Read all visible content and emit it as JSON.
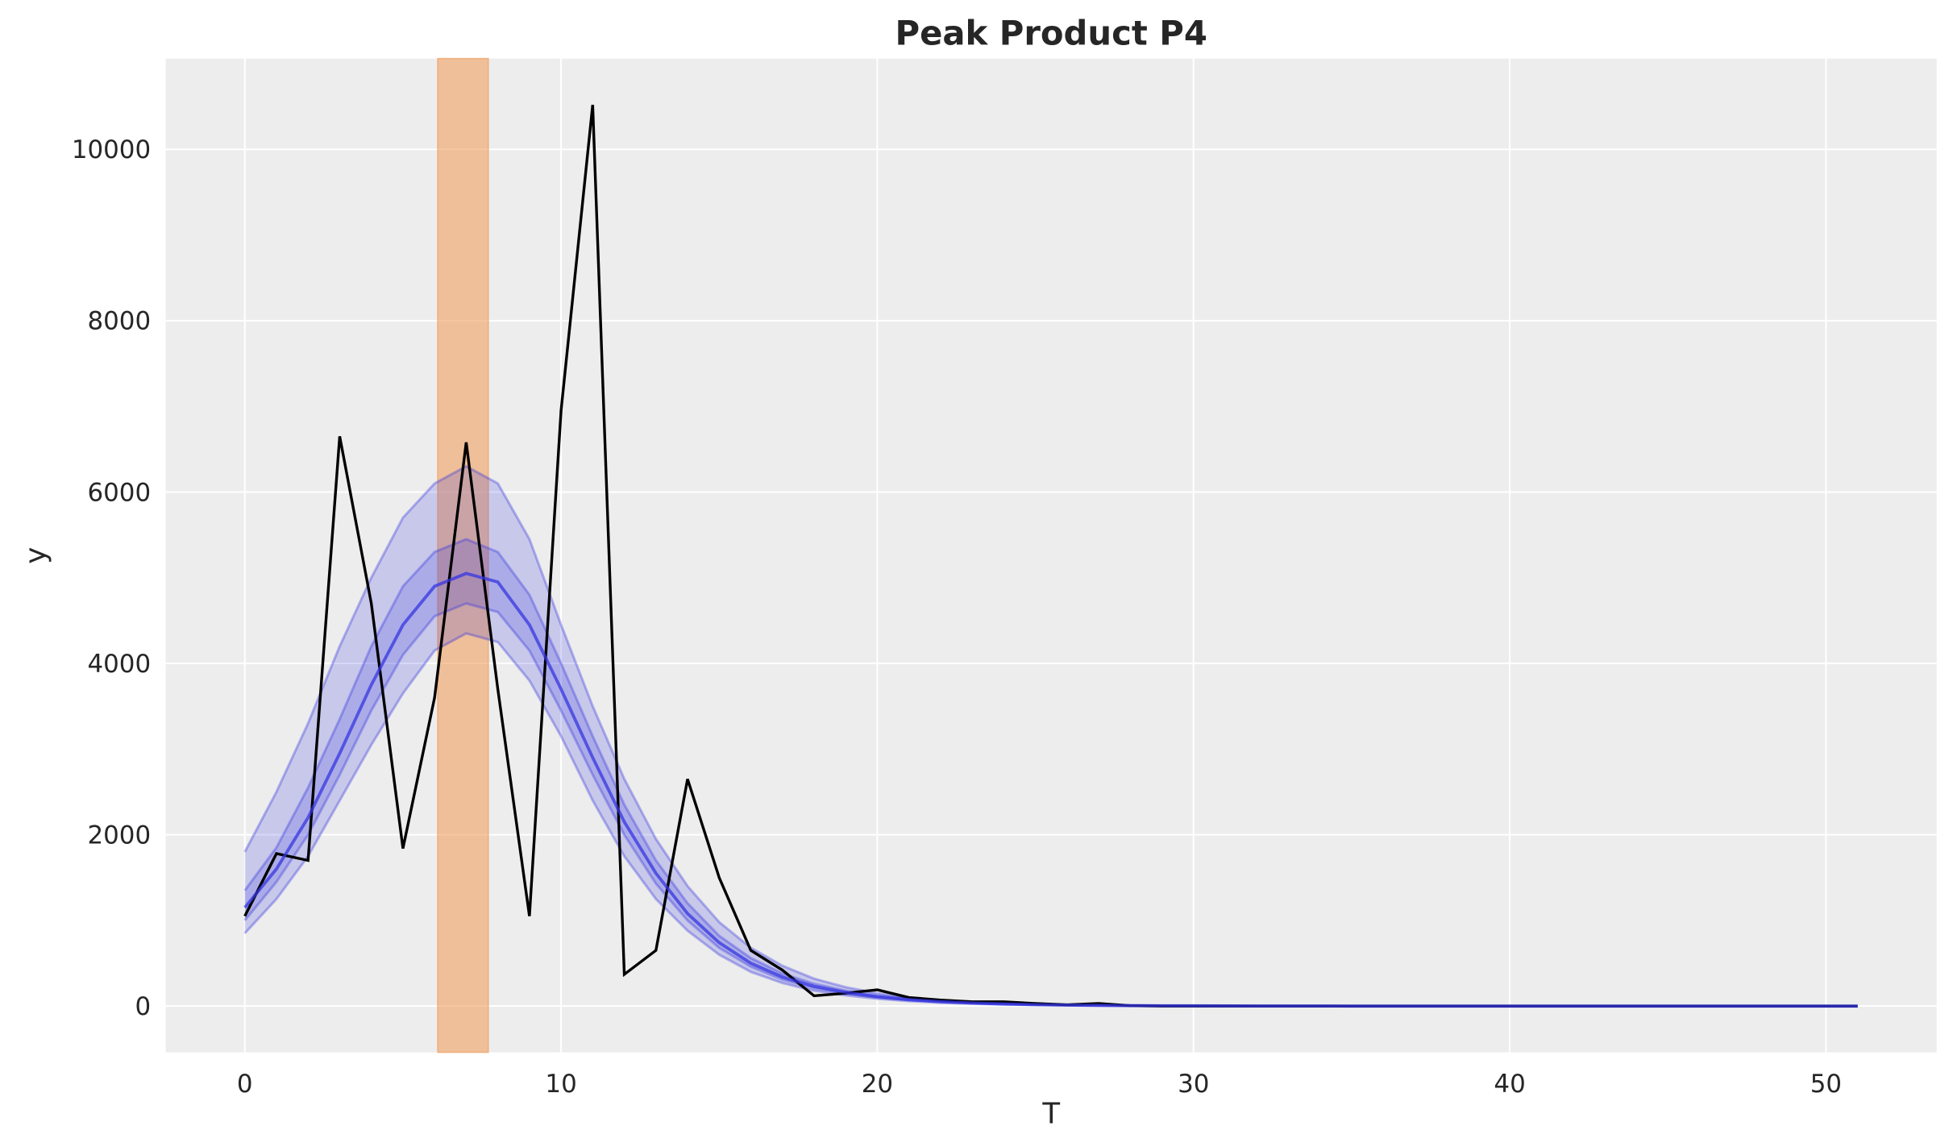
{
  "chart_data": {
    "type": "line",
    "title": "Peak Product P4",
    "xlabel": "T",
    "ylabel": "y",
    "xlim": [
      -2.5,
      53.5
    ],
    "ylim": [
      -540,
      11060
    ],
    "xticks": [
      0,
      10,
      20,
      30,
      40,
      50
    ],
    "yticks": [
      0,
      2000,
      4000,
      6000,
      8000,
      10000
    ],
    "grid": true,
    "background": "#ededed",
    "highlight_span": {
      "x_start": 6.1,
      "x_end": 7.7,
      "color": "#f0a060"
    },
    "observed": {
      "color": "#000000",
      "values": [
        1050,
        1780,
        1700,
        6650,
        4700,
        1840,
        3600,
        6580,
        3700,
        1050,
        6950,
        10520,
        370,
        650,
        2650,
        1500,
        650,
        420,
        120,
        150,
        190,
        100,
        70,
        50,
        50,
        30,
        15,
        30,
        5,
        0,
        0,
        0,
        0,
        0,
        0,
        0,
        0,
        0,
        0,
        0,
        0,
        0,
        0,
        0,
        0,
        0,
        0,
        0,
        0,
        0,
        0,
        0
      ]
    },
    "posterior_color": "#3535e0",
    "posterior_bands": [
      {
        "lower": [
          850,
          1250,
          1750,
          2400,
          3050,
          3650,
          4150,
          4350,
          4250,
          3800,
          3150,
          2400,
          1750,
          1250,
          880,
          600,
          400,
          270,
          180,
          125,
          85,
          58,
          40,
          28,
          19,
          13,
          9,
          6,
          4,
          3,
          2,
          1,
          1,
          0,
          0,
          0,
          0,
          0,
          0,
          0,
          0,
          0,
          0,
          0,
          0,
          0,
          0,
          0,
          0,
          0,
          0,
          0
        ],
        "upper": [
          1800,
          2500,
          3300,
          4200,
          5000,
          5700,
          6100,
          6300,
          6100,
          5450,
          4450,
          3500,
          2650,
          1950,
          1400,
          980,
          680,
          470,
          320,
          220,
          150,
          100,
          70,
          48,
          33,
          22,
          15,
          10,
          7,
          5,
          4,
          3,
          2,
          1,
          1,
          0,
          0,
          0,
          0,
          0,
          0,
          0,
          0,
          0,
          0,
          0,
          0,
          0,
          0,
          0,
          0,
          0
        ]
      },
      {
        "lower": [
          1000,
          1450,
          2000,
          2700,
          3450,
          4100,
          4550,
          4700,
          4600,
          4150,
          3450,
          2700,
          2000,
          1430,
          1000,
          680,
          460,
          310,
          210,
          145,
          100,
          68,
          47,
          33,
          23,
          15,
          11,
          7,
          5,
          3,
          2,
          2,
          1,
          1,
          0,
          0,
          0,
          0,
          0,
          0,
          0,
          0,
          0,
          0,
          0,
          0,
          0,
          0,
          0,
          0,
          0,
          0
        ],
        "upper": [
          1350,
          1850,
          2550,
          3350,
          4200,
          4900,
          5300,
          5450,
          5300,
          4800,
          4000,
          3150,
          2350,
          1700,
          1200,
          820,
          560,
          380,
          260,
          180,
          125,
          85,
          58,
          40,
          28,
          19,
          13,
          9,
          6,
          4,
          3,
          2,
          1,
          1,
          1,
          0,
          0,
          0,
          0,
          0,
          0,
          0,
          0,
          0,
          0,
          0,
          0,
          0,
          0,
          0,
          0,
          0
        ]
      }
    ],
    "posterior_mean": [
      1150,
      1600,
      2200,
      2950,
      3750,
      4450,
      4900,
      5050,
      4950,
      4450,
      3700,
      2900,
      2150,
      1550,
      1080,
      740,
      500,
      340,
      230,
      160,
      110,
      75,
      52,
      36,
      25,
      17,
      12,
      8,
      6,
      4,
      3,
      2,
      1,
      1,
      1,
      0,
      0,
      0,
      0,
      0,
      0,
      0,
      0,
      0,
      0,
      0,
      0,
      0,
      0,
      0,
      0,
      0
    ]
  }
}
